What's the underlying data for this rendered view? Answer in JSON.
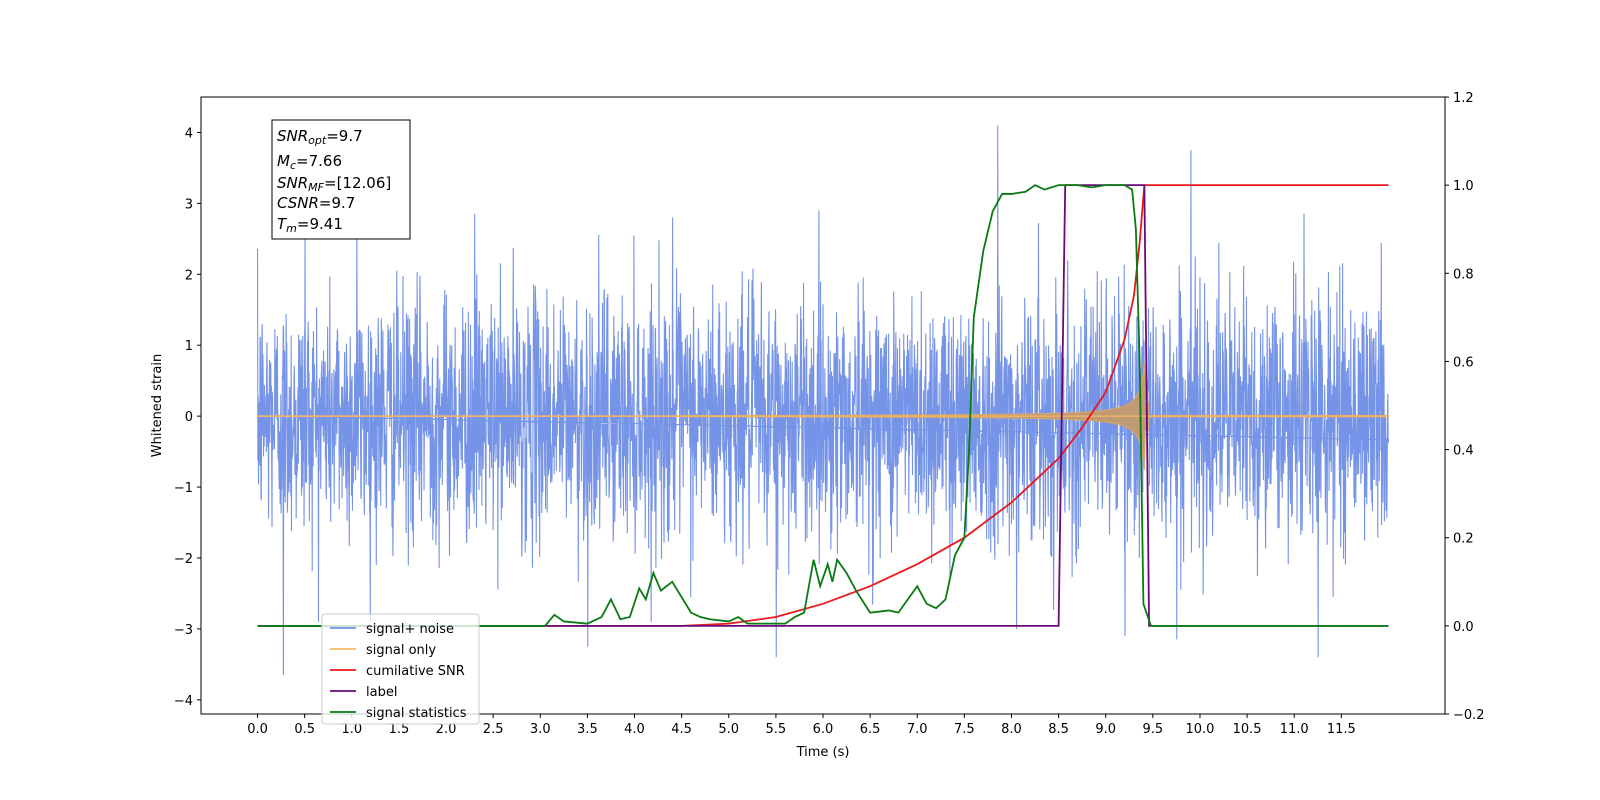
{
  "chart_data": {
    "type": "line",
    "title": "",
    "xlabel": "Time (s)",
    "ylabel_left": "Whitened strain",
    "ylabel_right": "",
    "xlim": [
      -0.6,
      12.6
    ],
    "ylim_left": [
      -4.2,
      4.5
    ],
    "ylim_right": [
      -0.2,
      1.2
    ],
    "x_ticks": [
      "0.0",
      "0.5",
      "1.0",
      "1.5",
      "2.0",
      "2.5",
      "3.0",
      "3.5",
      "4.0",
      "4.5",
      "5.0",
      "5.5",
      "6.0",
      "6.5",
      "7.0",
      "7.5",
      "8.0",
      "8.5",
      "9.0",
      "9.5",
      "10.0",
      "10.5",
      "11.0",
      "11.5"
    ],
    "y_ticks_left": [
      "4",
      "3",
      "2",
      "1",
      "0",
      "−1",
      "−2",
      "−3",
      "−4"
    ],
    "y_ticks_right": [
      "1.2",
      "1.0",
      "0.8",
      "0.6",
      "0.4",
      "0.2",
      "0.0",
      "−0.2"
    ],
    "grid": false,
    "legend_position": "lower-left",
    "info_box": {
      "snr_opt": {
        "name": "SNR",
        "sub": "opt",
        "value": "=9.7"
      },
      "mc": {
        "name": "M",
        "sub": "c",
        "value": "=7.66"
      },
      "snr_mf": {
        "name": "SNR",
        "sub": "MF",
        "value": "=[12.06]"
      },
      "csnr": {
        "name": "CSNR",
        "value": "=9.7"
      },
      "tm": {
        "name": "T",
        "sub": "m",
        "value": "=9.41"
      }
    },
    "series": [
      {
        "name": "signal+ noise",
        "color": "#6f8ee6",
        "axis": "left",
        "noise_std": 0.85,
        "x_range": [
          0.0,
          12.0
        ],
        "spikes": [
          [
            0.27,
            -3.65
          ],
          [
            0.5,
            2.55
          ],
          [
            1.05,
            2.8
          ],
          [
            2.3,
            2.85
          ],
          [
            3.5,
            -3.25
          ],
          [
            4.4,
            2.8
          ],
          [
            5.5,
            -3.4
          ],
          [
            7.85,
            4.1
          ],
          [
            8.05,
            -3.0
          ],
          [
            9.2,
            -3.1
          ],
          [
            9.9,
            3.75
          ],
          [
            9.75,
            -3.15
          ],
          [
            11.25,
            -3.4
          ],
          [
            11.1,
            2.85
          ]
        ]
      },
      {
        "name": "signal only",
        "color": "#f5b866",
        "axis": "left",
        "envelope": {
          "start": 4.5,
          "merger": 9.41,
          "ringdown_end": 9.45,
          "peak_amplitude": 0.8,
          "fade_amplitude": 0.2
        }
      },
      {
        "name": "cumilative SNR",
        "color": "#e8181c",
        "axis": "right",
        "points": [
          [
            0.0,
            0.0
          ],
          [
            4.5,
            0.0
          ],
          [
            5.0,
            0.005
          ],
          [
            5.5,
            0.02
          ],
          [
            6.0,
            0.05
          ],
          [
            6.5,
            0.09
          ],
          [
            7.0,
            0.14
          ],
          [
            7.5,
            0.2
          ],
          [
            8.0,
            0.28
          ],
          [
            8.5,
            0.38
          ],
          [
            8.75,
            0.45
          ],
          [
            9.0,
            0.53
          ],
          [
            9.2,
            0.65
          ],
          [
            9.3,
            0.75
          ],
          [
            9.36,
            0.87
          ],
          [
            9.41,
            1.0
          ],
          [
            12.0,
            1.0
          ]
        ]
      },
      {
        "name": "label",
        "color": "#6a0a7a",
        "axis": "right",
        "points": [
          [
            0.0,
            0.0
          ],
          [
            8.5,
            0.0
          ],
          [
            8.57,
            1.0
          ],
          [
            9.41,
            1.0
          ],
          [
            9.46,
            0.0
          ],
          [
            12.0,
            0.0
          ]
        ]
      },
      {
        "name": "signal statistics",
        "color": "#0a7a12",
        "axis": "right",
        "points": [
          [
            0.0,
            0.0
          ],
          [
            3.05,
            0.0
          ],
          [
            3.15,
            0.025
          ],
          [
            3.25,
            0.01
          ],
          [
            3.5,
            0.005
          ],
          [
            3.65,
            0.02
          ],
          [
            3.75,
            0.06
          ],
          [
            3.85,
            0.015
          ],
          [
            3.95,
            0.02
          ],
          [
            4.05,
            0.085
          ],
          [
            4.12,
            0.06
          ],
          [
            4.2,
            0.12
          ],
          [
            4.28,
            0.08
          ],
          [
            4.4,
            0.1
          ],
          [
            4.6,
            0.03
          ],
          [
            4.7,
            0.02
          ],
          [
            4.8,
            0.015
          ],
          [
            5.0,
            0.01
          ],
          [
            5.1,
            0.02
          ],
          [
            5.2,
            0.005
          ],
          [
            5.6,
            0.005
          ],
          [
            5.7,
            0.02
          ],
          [
            5.8,
            0.03
          ],
          [
            5.9,
            0.15
          ],
          [
            5.97,
            0.09
          ],
          [
            6.05,
            0.14
          ],
          [
            6.1,
            0.1
          ],
          [
            6.15,
            0.15
          ],
          [
            6.25,
            0.12
          ],
          [
            6.35,
            0.08
          ],
          [
            6.5,
            0.03
          ],
          [
            6.7,
            0.035
          ],
          [
            6.8,
            0.03
          ],
          [
            6.9,
            0.06
          ],
          [
            7.0,
            0.09
          ],
          [
            7.1,
            0.05
          ],
          [
            7.2,
            0.04
          ],
          [
            7.3,
            0.06
          ],
          [
            7.4,
            0.16
          ],
          [
            7.5,
            0.2
          ],
          [
            7.55,
            0.4
          ],
          [
            7.6,
            0.7
          ],
          [
            7.7,
            0.85
          ],
          [
            7.8,
            0.94
          ],
          [
            7.9,
            0.98
          ],
          [
            8.0,
            0.98
          ],
          [
            8.15,
            0.985
          ],
          [
            8.25,
            1.0
          ],
          [
            8.35,
            0.99
          ],
          [
            8.5,
            1.0
          ],
          [
            8.7,
            1.0
          ],
          [
            8.85,
            0.995
          ],
          [
            9.0,
            1.0
          ],
          [
            9.2,
            1.0
          ],
          [
            9.28,
            0.99
          ],
          [
            9.32,
            0.9
          ],
          [
            9.36,
            0.6
          ],
          [
            9.4,
            0.05
          ],
          [
            9.48,
            0.0
          ],
          [
            12.0,
            0.0
          ]
        ]
      }
    ]
  }
}
